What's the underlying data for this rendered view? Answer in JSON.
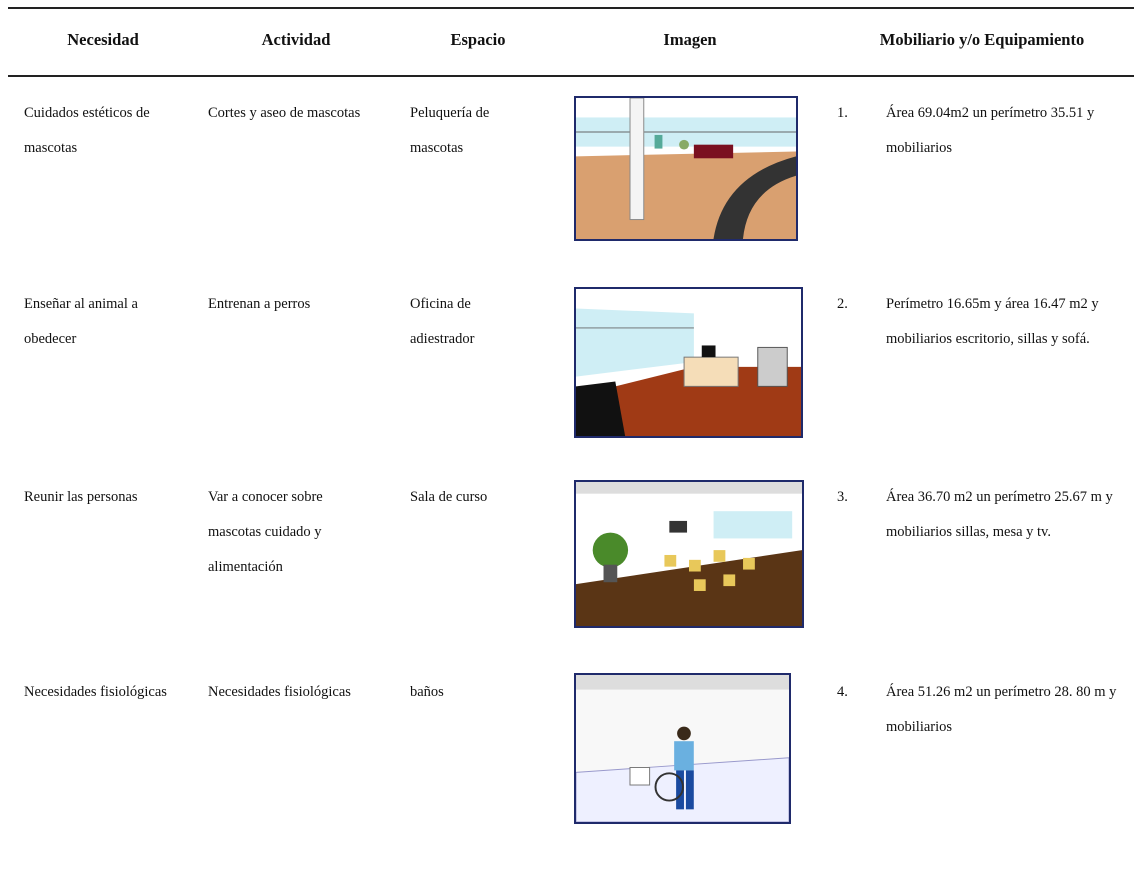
{
  "table": {
    "headers": [
      "Necesidad",
      "Actividad",
      "Espacio",
      "Imagen",
      "Mobiliario y/o Equipamiento"
    ],
    "rows": [
      {
        "necesidad": "Cuidados estéticos de mascotas",
        "actividad": "Cortes y aseo de mascotas",
        "espacio": "Peluquería de mascotas",
        "number": "1.",
        "mobiliario": "Área 69.04m2 un perímetro 35.51 y mobiliarios"
      },
      {
        "necesidad": "Enseñar al animal a obedecer",
        "actividad": "Entrenan a perros",
        "espacio": "Oficina de adiestrador",
        "number": "2.",
        "mobiliario": "Perímetro 16.65m y área 16.47 m2 y mobiliarios escritorio, sillas y sofá."
      },
      {
        "necesidad": "Reunir las personas",
        "actividad": "Var a conocer sobre mascotas cuidado y alimentación",
        "espacio": "Sala de curso",
        "number": "3.",
        "mobiliario": "Área 36.70 m2 un perímetro 25.67 m y mobiliarios sillas, mesa y tv."
      },
      {
        "necesidad": "Necesidades fisiológicas",
        "actividad": "Necesidades fisiológicas",
        "espacio": "baños",
        "number": "4.",
        "mobiliario": "Área 51.26 m2 un perímetro 28. 80 m y mobiliarios"
      }
    ]
  }
}
